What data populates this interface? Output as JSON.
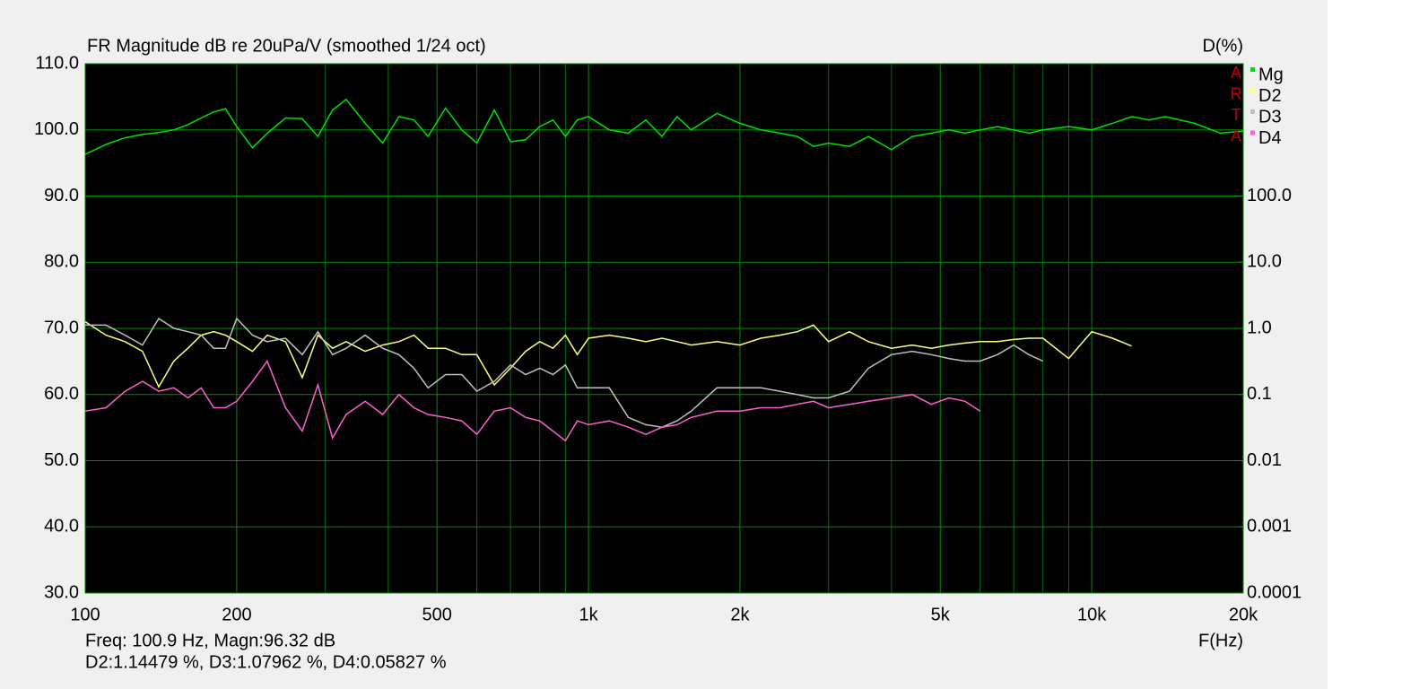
{
  "chart_data": {
    "type": "line",
    "title": "FR Magnitude dB re 20uPa/V (smoothed 1/24 oct)",
    "y2_label": "D(%)",
    "x_label": "F(Hz)",
    "brand_letters": [
      "A",
      "R",
      "T",
      "A"
    ],
    "annotations": [
      "Freq: 100.9 Hz, Magn:96.32 dB",
      "D2:1.14479 %, D3:1.07962 %, D4:0.05827 %"
    ],
    "xscale": "log",
    "y2scale": "log",
    "grid": true,
    "legend": "top-right",
    "xlim": [
      100,
      20000
    ],
    "xticks": [
      100,
      200,
      500,
      {
        "value": 1000,
        "label": "1k"
      },
      {
        "value": 2000,
        "label": "2k"
      },
      {
        "value": 5000,
        "label": "5k"
      },
      {
        "value": 10000,
        "label": "10k"
      },
      {
        "value": 20000,
        "label": "20k"
      }
    ],
    "xminorticks": [
      300,
      400,
      600,
      700,
      800,
      900,
      3000,
      4000,
      6000,
      7000,
      8000,
      9000
    ],
    "ylim": [
      30,
      110
    ],
    "yticks": [
      {
        "value": 30,
        "label": "30.0"
      },
      {
        "value": 40,
        "label": "40.0"
      },
      {
        "value": 50,
        "label": "50.0"
      },
      {
        "value": 60,
        "label": "60.0"
      },
      {
        "value": 70,
        "label": "70.0"
      },
      {
        "value": 80,
        "label": "80.0"
      },
      {
        "value": 90,
        "label": "90.0"
      },
      {
        "value": 100,
        "label": "100.0"
      },
      {
        "value": 110,
        "label": "110.0"
      }
    ],
    "y2lim": [
      0.0001,
      10000
    ],
    "y2ticks": [
      0.0001,
      0.001,
      0.01,
      0.1,
      {
        "value": 1,
        "label": "1.0"
      },
      {
        "value": 10,
        "label": "10.0"
      },
      {
        "value": 100,
        "label": "100.0"
      }
    ],
    "x": [
      100,
      110,
      120,
      130,
      140,
      150,
      160,
      170,
      180,
      190,
      200,
      215,
      230,
      250,
      270,
      290,
      310,
      330,
      360,
      390,
      420,
      450,
      480,
      520,
      560,
      600,
      650,
      700,
      750,
      800,
      850,
      900,
      950,
      1000,
      1100,
      1200,
      1300,
      1400,
      1500,
      1600,
      1800,
      2000,
      2200,
      2400,
      2600,
      2800,
      3000,
      3300,
      3600,
      4000,
      4400,
      4800,
      5200,
      5600,
      6000,
      6500,
      7000,
      7500,
      8000,
      9000,
      10000,
      11000,
      12000,
      13000,
      14000,
      16000,
      18000,
      20000
    ],
    "series": [
      {
        "name": "Mg",
        "color": "#00e000",
        "values": [
          96.3,
          97.8,
          98.8,
          99.3,
          99.6,
          100.0,
          100.8,
          101.8,
          102.7,
          103.2,
          100.5,
          97.3,
          99.5,
          101.8,
          101.7,
          99.0,
          103.0,
          104.6,
          101.0,
          98.0,
          102.0,
          101.5,
          99.0,
          103.3,
          100.0,
          98.0,
          103.0,
          98.2,
          98.5,
          100.5,
          101.5,
          99.0,
          101.5,
          102.0,
          100.0,
          99.5,
          101.5,
          99.0,
          102.0,
          100.0,
          102.5,
          101.0,
          100.0,
          99.5,
          99.0,
          97.5,
          98.0,
          97.5,
          99.0,
          97.0,
          99.0,
          99.5,
          100.0,
          99.5,
          100.0,
          100.5,
          100.0,
          99.5,
          100.0,
          100.5,
          100.0,
          101.0,
          102.0,
          101.5,
          102.0,
          101.0,
          99.5,
          99.8
        ]
      },
      {
        "name": "D2",
        "color": "#ffff80",
        "axis": "y2",
        "values": [
          1.26,
          0.79,
          0.63,
          0.45,
          0.13,
          0.32,
          0.5,
          0.79,
          0.89,
          0.79,
          0.63,
          0.45,
          0.79,
          0.63,
          0.18,
          0.79,
          0.5,
          0.63,
          0.45,
          0.56,
          0.63,
          0.79,
          0.5,
          0.5,
          0.4,
          0.4,
          0.14,
          0.25,
          0.45,
          0.63,
          0.5,
          0.79,
          0.4,
          0.71,
          0.79,
          0.71,
          0.63,
          0.71,
          0.63,
          0.56,
          0.63,
          0.56,
          0.71,
          0.79,
          0.89,
          1.12,
          0.63,
          0.89,
          0.63,
          0.5,
          0.56,
          0.5,
          0.56,
          0.6,
          0.63,
          0.63,
          0.68,
          0.71,
          0.71,
          0.35,
          0.89,
          0.71,
          0.54,
          null,
          null,
          null,
          null,
          null
        ]
      },
      {
        "name": "D3",
        "color": "#c0c0c0",
        "axis": "y2",
        "values": [
          1.12,
          1.12,
          0.79,
          0.56,
          1.41,
          1.0,
          0.89,
          0.79,
          0.5,
          0.5,
          1.41,
          0.79,
          0.63,
          0.71,
          0.4,
          0.89,
          0.4,
          0.5,
          0.79,
          0.5,
          0.4,
          0.25,
          0.126,
          0.2,
          0.2,
          0.112,
          0.158,
          0.28,
          0.2,
          0.25,
          0.2,
          0.28,
          0.126,
          0.126,
          0.126,
          0.045,
          0.035,
          0.032,
          0.04,
          0.056,
          0.126,
          0.126,
          0.126,
          0.112,
          0.1,
          0.089,
          0.089,
          0.112,
          0.25,
          0.4,
          0.45,
          0.4,
          0.35,
          0.32,
          0.32,
          0.4,
          0.56,
          0.4,
          0.32,
          null,
          null,
          null,
          null,
          null,
          null,
          null,
          null,
          null
        ]
      },
      {
        "name": "D4",
        "color": "#ff60d0",
        "axis": "y2",
        "values": [
          0.056,
          0.063,
          0.112,
          0.158,
          0.112,
          0.126,
          0.089,
          0.126,
          0.063,
          0.063,
          0.079,
          0.158,
          0.32,
          0.063,
          0.028,
          0.14,
          0.022,
          0.05,
          0.079,
          0.05,
          0.1,
          0.063,
          0.05,
          0.045,
          0.04,
          0.025,
          0.056,
          0.063,
          0.045,
          0.04,
          0.028,
          0.02,
          0.04,
          0.035,
          0.04,
          0.032,
          0.025,
          0.032,
          0.035,
          0.045,
          0.056,
          0.056,
          0.063,
          0.063,
          0.071,
          0.079,
          0.063,
          0.071,
          0.079,
          0.089,
          0.1,
          0.071,
          0.089,
          0.079,
          0.056,
          null,
          null,
          null,
          null,
          null,
          null,
          null,
          null,
          null,
          null,
          null,
          null,
          null
        ]
      }
    ]
  }
}
